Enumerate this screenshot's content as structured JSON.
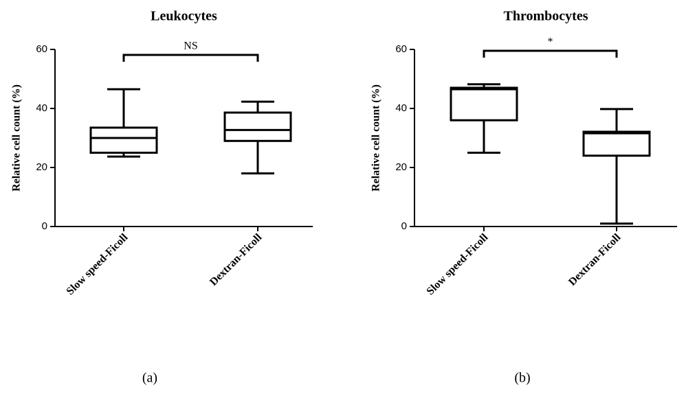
{
  "chart_data": [
    {
      "type": "box",
      "title": "Leukocytes",
      "y_label": "Relative cell count (%)",
      "categories": [
        "Slow speed-Ficoll",
        "Dextran-Ficoll"
      ],
      "boxes": [
        {
          "min": 23.7,
          "q1": 25,
          "median": 30,
          "q3": 33.5,
          "max": 46.5
        },
        {
          "min": 18,
          "q1": 29,
          "median": 32.7,
          "q3": 38.6,
          "max": 42.3
        }
      ],
      "ylim": [
        0,
        60
      ],
      "yticks": [
        0,
        20,
        40,
        60
      ],
      "annotation": "NS",
      "panel_label": "(a)"
    },
    {
      "type": "box",
      "title": "Thrombocytes",
      "y_label": "Relative cell count (%)",
      "categories": [
        "Slow speed-Ficoll",
        "Dextran-Ficoll"
      ],
      "boxes": [
        {
          "min": 25,
          "q1": 36,
          "median": 46.5,
          "q3": 47,
          "max": 48.2
        },
        {
          "min": 1,
          "q1": 24,
          "median": 31.6,
          "q3": 32.1,
          "max": 39.8
        }
      ],
      "ylim": [
        0,
        60
      ],
      "yticks": [
        0,
        20,
        40,
        60
      ],
      "annotation": "*",
      "panel_label": "(b)"
    }
  ]
}
